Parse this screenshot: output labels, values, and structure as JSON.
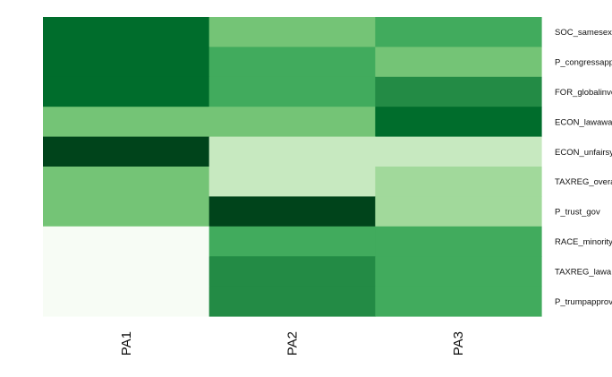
{
  "chart_data": {
    "type": "heatmap",
    "columns": [
      "PA1",
      "PA2",
      "PA3"
    ],
    "rows": [
      "SOC_samesex",
      "P_congressapp",
      "FOR_globalinve",
      "ECON_lawawa",
      "ECON_unfairsy",
      "TAXREG_overa",
      "P_trust_gov",
      "RACE_minority",
      "TAXREG_lawa",
      "P_trumpapprov"
    ],
    "values": [
      [
        0.8,
        0.45,
        0.6
      ],
      [
        0.8,
        0.6,
        0.45
      ],
      [
        0.8,
        0.6,
        0.7
      ],
      [
        0.45,
        0.45,
        0.8
      ],
      [
        1.0,
        0.15,
        0.15
      ],
      [
        0.45,
        0.15,
        0.3
      ],
      [
        0.45,
        1.0,
        0.3
      ],
      [
        0.0,
        0.6,
        0.6
      ],
      [
        0.0,
        0.7,
        0.6
      ],
      [
        0.0,
        0.7,
        0.6
      ]
    ],
    "color_scale": [
      "#f7fcf5",
      "#c7e9c0",
      "#a1d99b",
      "#74c476",
      "#41ab5d",
      "#238b45",
      "#006d2c",
      "#00441b"
    ],
    "legend": "none",
    "grid": false
  }
}
